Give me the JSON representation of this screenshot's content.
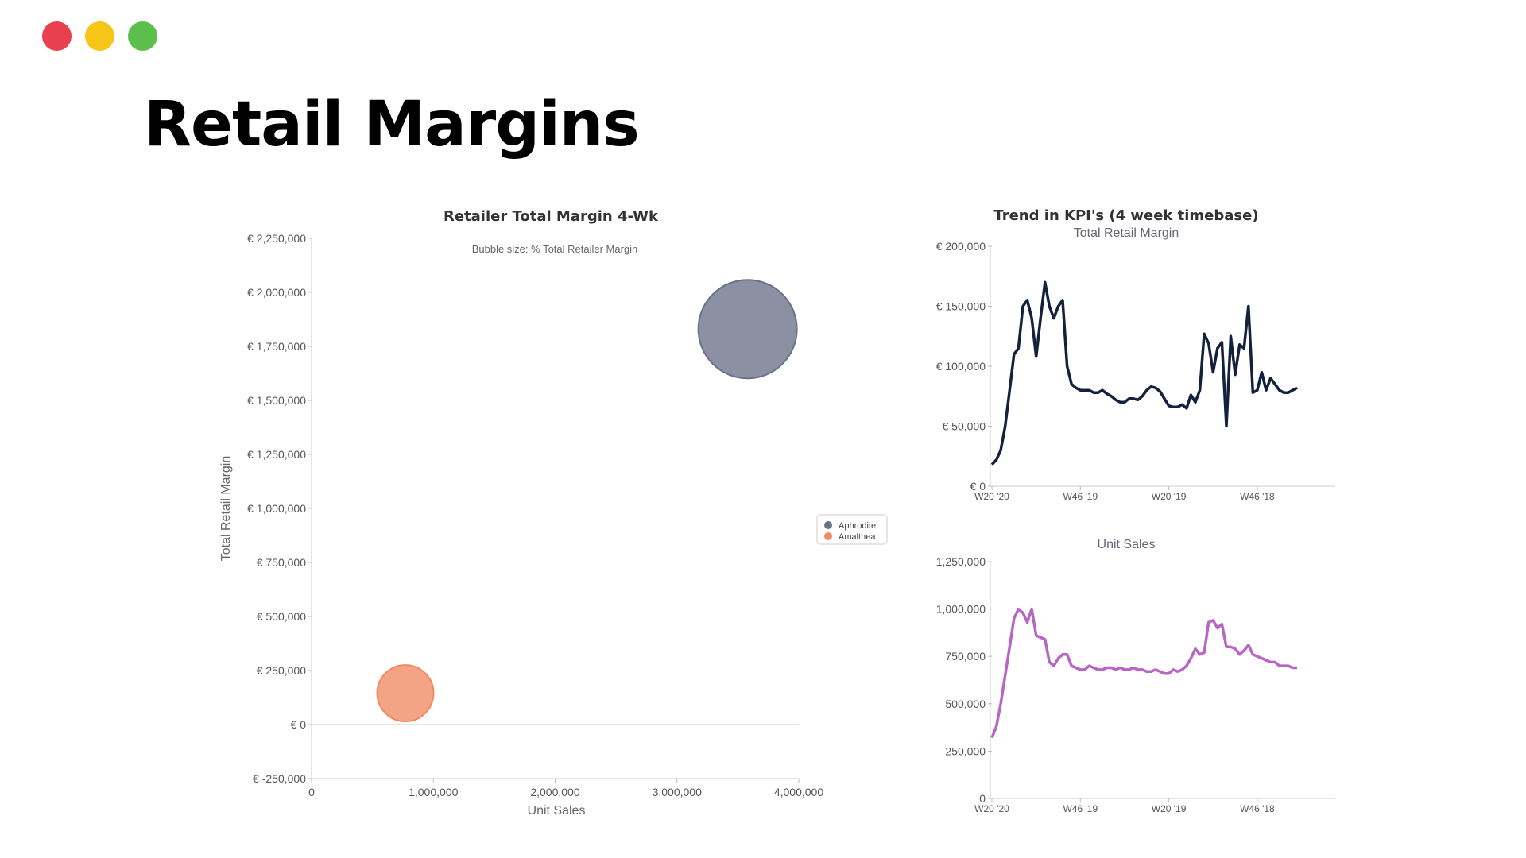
{
  "window_controls": [
    {
      "name": "close",
      "color": "#e8404e"
    },
    {
      "name": "minimize",
      "color": "#f5c518"
    },
    {
      "name": "maximize",
      "color": "#5cbf4c"
    }
  ],
  "page_title": "Retail Margins",
  "chart_data": [
    {
      "type": "scatter",
      "title": "Retailer Total Margin 4-Wk",
      "subtitle": "Bubble size: % Total Retailer Margin",
      "xlabel": "Unit Sales",
      "ylabel": "Total Retail Margin",
      "xlim": [
        0,
        4000000
      ],
      "ylim": [
        -250000,
        2250000
      ],
      "xticks": [
        {
          "value": 0,
          "label": "0"
        },
        {
          "value": 1000000,
          "label": "1,000,000"
        },
        {
          "value": 2000000,
          "label": "2,000,000"
        },
        {
          "value": 3000000,
          "label": "3,000,000"
        },
        {
          "value": 4000000,
          "label": "4,000,000"
        }
      ],
      "yticks": [
        {
          "value": 2250000,
          "label": "€ 2,250,000"
        },
        {
          "value": 2000000,
          "label": "€ 2,000,000"
        },
        {
          "value": 1750000,
          "label": "€ 1,750,000"
        },
        {
          "value": 1500000,
          "label": "€ 1,500,000"
        },
        {
          "value": 1250000,
          "label": "€ 1,250,000"
        },
        {
          "value": 1000000,
          "label": "€ 1,000,000"
        },
        {
          "value": 750000,
          "label": "€ 750,000"
        },
        {
          "value": 500000,
          "label": "€ 500,000"
        },
        {
          "value": 250000,
          "label": "€ 250,000"
        },
        {
          "value": 0,
          "label": "€ 0"
        },
        {
          "value": -250000,
          "label": "€ -250,000"
        }
      ],
      "series": [
        {
          "name": "Aphrodite",
          "x": 3580000,
          "y": 1830000,
          "bubble_pct": 88,
          "color": "#6b7189"
        },
        {
          "name": "Amalthea",
          "x": 770000,
          "y": 145000,
          "bubble_pct": 12,
          "color": "#f08a63"
        }
      ],
      "legend": "right"
    },
    {
      "type": "line",
      "title": "Trend in KPI's (4 week timebase)",
      "subtitle": "Total Retail Margin",
      "color": "#14213d",
      "ylim": [
        0,
        200000
      ],
      "yticks": [
        {
          "value": 200000,
          "label": "€ 200,000"
        },
        {
          "value": 150000,
          "label": "€ 150,000"
        },
        {
          "value": 100000,
          "label": "€ 100,000"
        },
        {
          "value": 50000,
          "label": "€ 50,000"
        },
        {
          "value": 0,
          "label": "€ 0"
        }
      ],
      "xticks": [
        {
          "index": 0,
          "label": "W20 '20"
        },
        {
          "index": 20,
          "label": "W46 '19"
        },
        {
          "index": 40,
          "label": "W20 '19"
        },
        {
          "index": 60,
          "label": "W46 '18"
        }
      ],
      "x_count": 70,
      "values": [
        18000,
        22000,
        30000,
        50000,
        80000,
        110000,
        115000,
        150000,
        155000,
        140000,
        108000,
        140000,
        170000,
        150000,
        140000,
        150000,
        155000,
        100000,
        85000,
        82000,
        80000,
        80000,
        80000,
        78000,
        78000,
        80000,
        77000,
        75000,
        72000,
        70000,
        70000,
        73000,
        73000,
        72000,
        75000,
        80000,
        83000,
        82000,
        79000,
        73000,
        67000,
        66000,
        66000,
        68000,
        65000,
        76000,
        70000,
        80000,
        127000,
        119000,
        95000,
        115000,
        120000,
        50000,
        125000,
        93000,
        118000,
        115000,
        150000,
        78000,
        80000,
        95000,
        80000,
        90000,
        85000,
        80000,
        78000,
        78000,
        80000,
        82000
      ]
    },
    {
      "type": "line",
      "subtitle": "Unit Sales",
      "color": "#b865c6",
      "ylim": [
        0,
        1250000
      ],
      "yticks": [
        {
          "value": 1250000,
          "label": "1,250,000"
        },
        {
          "value": 1000000,
          "label": "1,000,000"
        },
        {
          "value": 750000,
          "label": "750,000"
        },
        {
          "value": 500000,
          "label": "500,000"
        },
        {
          "value": 250000,
          "label": "250,000"
        },
        {
          "value": 0,
          "label": "0"
        }
      ],
      "xticks": [
        {
          "index": 0,
          "label": "W20 '20"
        },
        {
          "index": 20,
          "label": "W46 '19"
        },
        {
          "index": 40,
          "label": "W20 '19"
        },
        {
          "index": 60,
          "label": "W46 '18"
        }
      ],
      "x_count": 70,
      "values": [
        320000,
        380000,
        500000,
        650000,
        800000,
        950000,
        1000000,
        980000,
        930000,
        1000000,
        860000,
        850000,
        840000,
        720000,
        700000,
        740000,
        760000,
        760000,
        700000,
        690000,
        680000,
        680000,
        700000,
        690000,
        680000,
        680000,
        690000,
        690000,
        680000,
        690000,
        680000,
        680000,
        690000,
        680000,
        680000,
        670000,
        670000,
        680000,
        670000,
        660000,
        660000,
        680000,
        670000,
        680000,
        700000,
        740000,
        790000,
        760000,
        770000,
        930000,
        940000,
        900000,
        920000,
        800000,
        800000,
        790000,
        760000,
        780000,
        810000,
        760000,
        750000,
        740000,
        730000,
        720000,
        720000,
        700000,
        700000,
        700000,
        690000,
        690000
      ]
    }
  ]
}
